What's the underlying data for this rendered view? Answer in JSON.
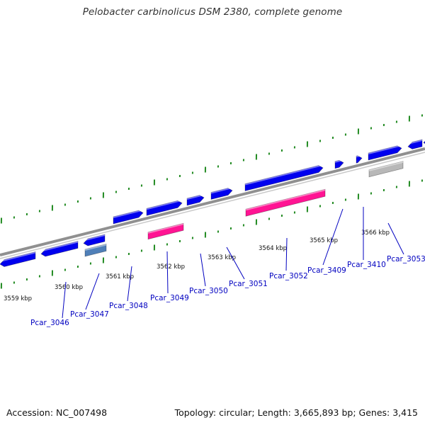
{
  "title": "Pelobacter carbinolicus DSM 2380, complete genome",
  "footer": {
    "accession": "Accession: NC_007498",
    "summary": "Topology: circular; Length: 3,665,893 bp; Genes: 3,415"
  },
  "colors": {
    "backbone": "#909090",
    "forward_gene": "#0000ee",
    "reverse_gene": "#0000ee",
    "highlight_gene": "#ff1493",
    "steelblue_gene": "#4f7fb8",
    "gray_gene": "#b8b8b8",
    "tick": "#228b22",
    "label_line": "#0000c0"
  },
  "scale_ticks": [
    {
      "label": "3559 kbp"
    },
    {
      "label": "3560 kbp"
    },
    {
      "label": "3561 kbp"
    },
    {
      "label": "3562 kbp"
    },
    {
      "label": "3563 kbp"
    },
    {
      "label": "3564 kbp"
    },
    {
      "label": "3565 kbp"
    },
    {
      "label": "3566 kbp"
    }
  ],
  "gene_labels": [
    {
      "name": "Pcar_3046"
    },
    {
      "name": "Pcar_3047"
    },
    {
      "name": "Pcar_3048"
    },
    {
      "name": "Pcar_3049"
    },
    {
      "name": "Pcar_3050"
    },
    {
      "name": "Pcar_3051"
    },
    {
      "name": "Pcar_3052"
    },
    {
      "name": "Pcar_3409"
    },
    {
      "name": "Pcar_3410"
    },
    {
      "name": "Pcar_3053"
    }
  ],
  "genes": [
    {
      "strand": "forward",
      "color": "blue"
    },
    {
      "strand": "forward",
      "color": "blue"
    },
    {
      "strand": "forward",
      "color": "blue"
    },
    {
      "strand": "forward",
      "color": "blue"
    },
    {
      "strand": "forward",
      "color": "blue"
    },
    {
      "strand": "forward",
      "color": "blue"
    },
    {
      "strand": "forward",
      "color": "blue"
    },
    {
      "strand": "forward",
      "color": "blue"
    },
    {
      "strand": "reverse",
      "color": "blue"
    },
    {
      "strand": "reverse",
      "color": "blue"
    },
    {
      "strand": "reverse",
      "color": "blue"
    },
    {
      "strand": "reverse",
      "color": "blue"
    },
    {
      "strand": "reverse",
      "color": "blue"
    },
    {
      "strand": "reverse",
      "color": "blue"
    },
    {
      "strand": "reverse",
      "color": "blue"
    },
    {
      "strand": "reverse",
      "color": "blue"
    },
    {
      "strand": "reverse",
      "color": "blue"
    },
    {
      "strand": "forward",
      "color": "steelblue"
    },
    {
      "strand": "forward",
      "color": "pink"
    },
    {
      "strand": "forward",
      "color": "pink"
    },
    {
      "strand": "forward",
      "color": "gray"
    }
  ]
}
